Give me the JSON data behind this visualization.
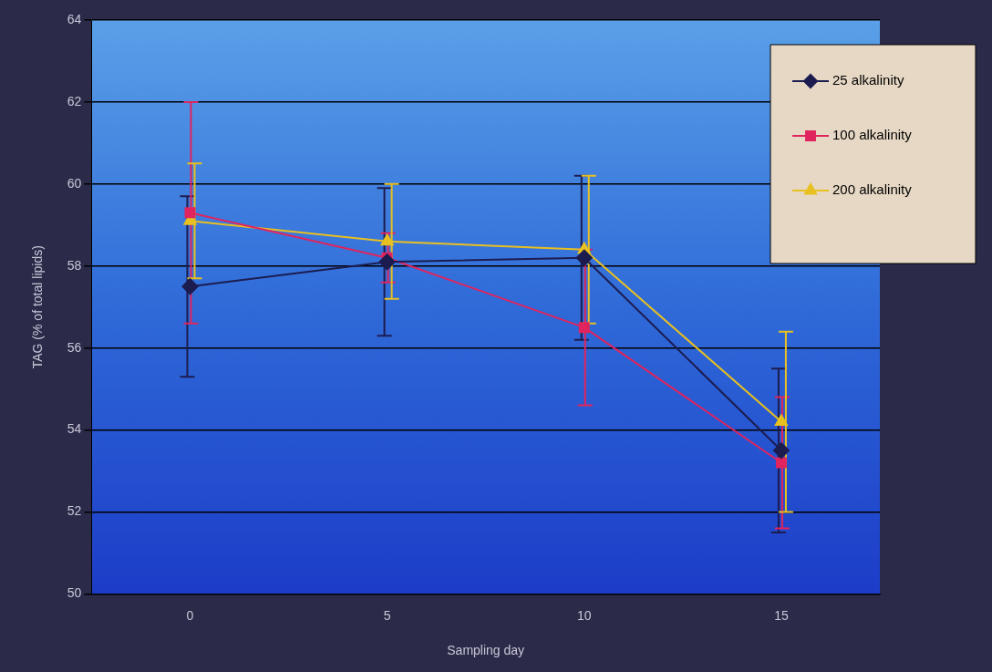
{
  "chart_data": {
    "type": "line",
    "xlabel": "Sampling day",
    "ylabel": "TAG (% of total lipids)",
    "categories": [
      "0",
      "5",
      "10",
      "15"
    ],
    "ylim": [
      50,
      64
    ],
    "yticks": [
      50,
      52,
      54,
      56,
      58,
      60,
      62,
      64
    ],
    "grid": "y",
    "legend": "top right",
    "series": [
      {
        "name": "25 alkalinity",
        "color": "#1c1c50",
        "marker": "diamond",
        "values": [
          57.5,
          58.1,
          58.2,
          53.5
        ],
        "errors": [
          2.2,
          1.8,
          2.0,
          2.0
        ]
      },
      {
        "name": "100 alkalinity",
        "color": "#e0245e",
        "marker": "square",
        "values": [
          59.3,
          58.2,
          56.5,
          53.2
        ],
        "errors": [
          2.7,
          0.6,
          1.9,
          1.6
        ]
      },
      {
        "name": "200 alkalinity",
        "color": "#e8c020",
        "marker": "triangle",
        "values": [
          59.1,
          58.6,
          58.4,
          54.2
        ],
        "errors": [
          1.4,
          1.4,
          1.8,
          2.2
        ]
      }
    ]
  }
}
